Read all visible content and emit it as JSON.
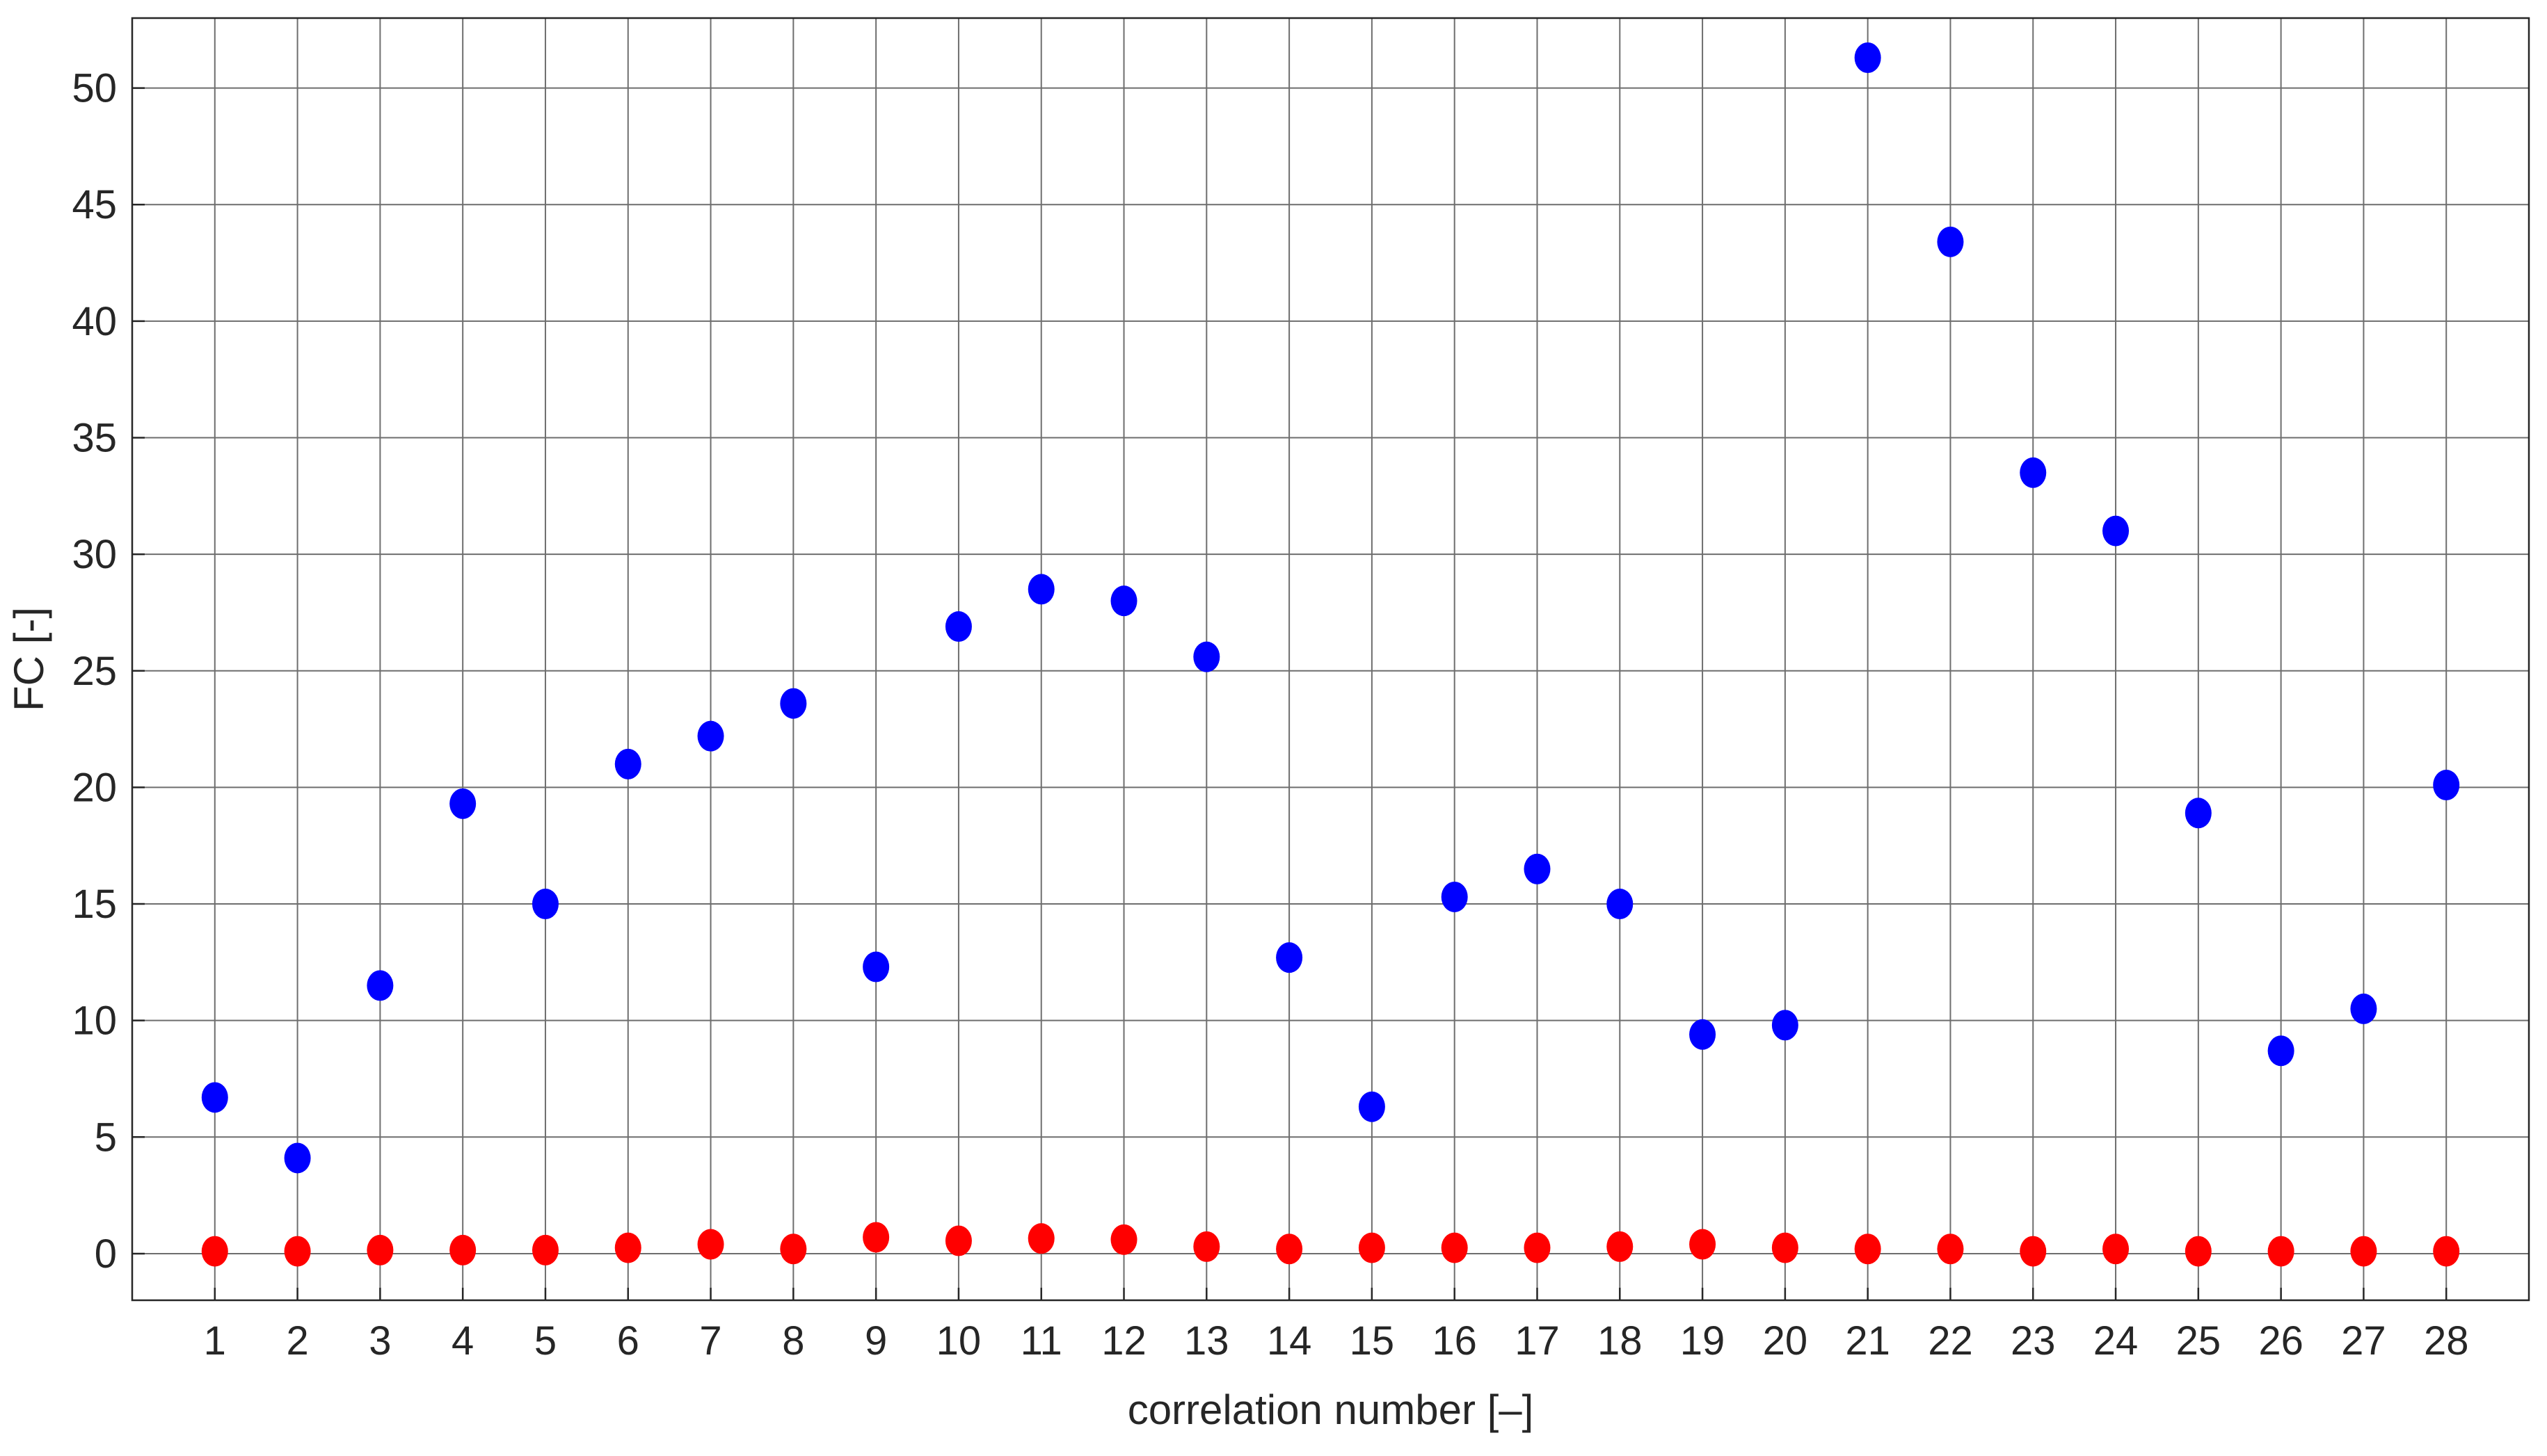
{
  "chart_data": {
    "type": "scatter",
    "title": "",
    "xlabel": "correlation number [–]",
    "ylabel": "FC [-]",
    "xlim": [
      0,
      29
    ],
    "ylim": [
      -2,
      53
    ],
    "x_ticks": [
      1,
      2,
      3,
      4,
      5,
      6,
      7,
      8,
      9,
      10,
      11,
      12,
      13,
      14,
      15,
      16,
      17,
      18,
      19,
      20,
      21,
      22,
      23,
      24,
      25,
      26,
      27,
      28
    ],
    "y_ticks": [
      0,
      5,
      10,
      15,
      20,
      25,
      30,
      35,
      40,
      45,
      50
    ],
    "grid": true,
    "legend": null,
    "x": [
      1,
      2,
      3,
      4,
      5,
      6,
      7,
      8,
      9,
      10,
      11,
      12,
      13,
      14,
      15,
      16,
      17,
      18,
      19,
      20,
      21,
      22,
      23,
      24,
      25,
      26,
      27,
      28
    ],
    "series": [
      {
        "color": "#0000ff",
        "values": [
          6.7,
          4.1,
          11.5,
          19.3,
          15.0,
          21.0,
          22.2,
          23.6,
          12.3,
          26.9,
          28.5,
          28.0,
          25.6,
          12.7,
          6.3,
          15.3,
          16.5,
          15.0,
          9.4,
          9.8,
          51.3,
          43.4,
          33.5,
          31.0,
          18.9,
          8.7,
          10.5,
          20.1
        ]
      },
      {
        "color": "#ff0000",
        "values": [
          0.1,
          0.1,
          0.15,
          0.15,
          0.15,
          0.25,
          0.4,
          0.2,
          0.7,
          0.55,
          0.65,
          0.6,
          0.3,
          0.2,
          0.25,
          0.25,
          0.25,
          0.3,
          0.4,
          0.25,
          0.2,
          0.2,
          0.1,
          0.2,
          0.1,
          0.1,
          0.1,
          0.1
        ]
      }
    ]
  }
}
